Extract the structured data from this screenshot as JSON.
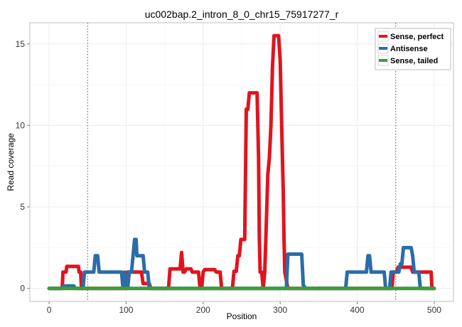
{
  "chart_data": {
    "type": "line",
    "title": "uc002bap.2_intron_8_0_chr15_75917277_r",
    "xlabel": "Position",
    "ylabel": "Read coverage",
    "xlim": [
      -25,
      525
    ],
    "ylim": [
      -0.8,
      16.3
    ],
    "x_ticks": [
      0,
      100,
      200,
      300,
      400,
      500
    ],
    "y_ticks": [
      0,
      5,
      10,
      15
    ],
    "x_tick_labels": [
      "0",
      "100",
      "200",
      "300",
      "400",
      "500"
    ],
    "y_tick_labels": [
      "0",
      "5",
      "10",
      "15"
    ],
    "grid": true,
    "legend_position": "top-right",
    "vlines": [
      50,
      450
    ],
    "series": [
      {
        "name": "Sense, perfect",
        "color": "#e0141e",
        "points": [
          [
            0,
            0
          ],
          [
            17,
            0
          ],
          [
            18,
            1
          ],
          [
            22,
            1
          ],
          [
            23,
            1.35
          ],
          [
            38,
            1.35
          ],
          [
            39,
            1
          ],
          [
            41,
            1
          ],
          [
            42,
            0
          ],
          [
            100,
            0
          ],
          [
            102,
            1
          ],
          [
            120,
            1
          ],
          [
            122,
            0.3
          ],
          [
            130,
            0.3
          ],
          [
            132,
            0
          ],
          [
            155,
            0
          ],
          [
            157,
            1.2
          ],
          [
            170,
            1.2
          ],
          [
            172,
            2.2
          ],
          [
            174,
            1
          ],
          [
            176,
            1
          ],
          [
            178,
            1.2
          ],
          [
            184,
            1.2
          ],
          [
            186,
            1
          ],
          [
            194,
            1
          ],
          [
            196,
            0
          ],
          [
            198,
            0
          ],
          [
            200,
            1
          ],
          [
            202,
            1.15
          ],
          [
            215,
            1.15
          ],
          [
            217,
            1
          ],
          [
            222,
            1
          ],
          [
            224,
            0
          ],
          [
            238,
            0
          ],
          [
            240,
            1.05
          ],
          [
            243,
            1.05
          ],
          [
            245,
            2
          ],
          [
            247,
            2
          ],
          [
            249,
            3
          ],
          [
            254,
            3
          ],
          [
            256,
            11
          ],
          [
            258,
            11
          ],
          [
            260,
            12
          ],
          [
            270,
            12
          ],
          [
            272,
            8
          ],
          [
            273,
            3
          ],
          [
            274,
            1
          ],
          [
            276,
            1
          ],
          [
            278,
            0
          ],
          [
            280,
            1
          ],
          [
            282,
            4
          ],
          [
            284,
            7
          ],
          [
            286,
            8
          ],
          [
            288,
            10
          ],
          [
            290,
            13.5
          ],
          [
            292,
            15.5
          ],
          [
            298,
            15.5
          ],
          [
            300,
            14
          ],
          [
            302,
            10
          ],
          [
            304,
            6
          ],
          [
            305,
            3
          ],
          [
            306,
            1
          ],
          [
            308,
            0.5
          ],
          [
            310,
            0
          ],
          [
            445,
            0
          ],
          [
            447,
            1
          ],
          [
            451,
            1
          ],
          [
            453,
            1.3
          ],
          [
            470,
            1.3
          ],
          [
            472,
            1
          ],
          [
            477,
            1
          ],
          [
            478,
            1
          ],
          [
            496,
            1
          ],
          [
            497,
            0
          ],
          [
            500,
            0
          ]
        ]
      },
      {
        "name": "Antisense",
        "color": "#2c6ca8",
        "points": [
          [
            0,
            0
          ],
          [
            17,
            0
          ],
          [
            19,
            0.15
          ],
          [
            32,
            0.15
          ],
          [
            34,
            0
          ],
          [
            44,
            0
          ],
          [
            46,
            1
          ],
          [
            58,
            1
          ],
          [
            60,
            2
          ],
          [
            63,
            2
          ],
          [
            65,
            1
          ],
          [
            94,
            1
          ],
          [
            96,
            0
          ],
          [
            98,
            1
          ],
          [
            102,
            0
          ],
          [
            104,
            1
          ],
          [
            107,
            1
          ],
          [
            109,
            2
          ],
          [
            111,
            3
          ],
          [
            113,
            3
          ],
          [
            114,
            2
          ],
          [
            122,
            2
          ],
          [
            124,
            1
          ],
          [
            128,
            1
          ],
          [
            130,
            0
          ],
          [
            308,
            0
          ],
          [
            310,
            2.1
          ],
          [
            328,
            2.1
          ],
          [
            330,
            0.2
          ],
          [
            333,
            0
          ],
          [
            385,
            0
          ],
          [
            387,
            1
          ],
          [
            412,
            1
          ],
          [
            414,
            2
          ],
          [
            416,
            2
          ],
          [
            418,
            1
          ],
          [
            435,
            1
          ],
          [
            437,
            0
          ],
          [
            442,
            0
          ],
          [
            444,
            1
          ],
          [
            454,
            1
          ],
          [
            456,
            1.5
          ],
          [
            458,
            1.5
          ],
          [
            460,
            2.5
          ],
          [
            470,
            2.5
          ],
          [
            472,
            2
          ],
          [
            474,
            1
          ],
          [
            480,
            1
          ],
          [
            482,
            0
          ],
          [
            500,
            0
          ]
        ]
      },
      {
        "name": "Sense, tailed",
        "color": "#3d9c3a",
        "points": [
          [
            0,
            0
          ],
          [
            500,
            0
          ]
        ]
      }
    ]
  }
}
